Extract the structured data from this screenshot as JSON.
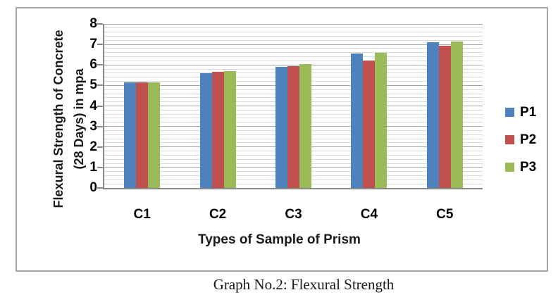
{
  "figure": {
    "caption": "Graph No.2: Flexural Strength"
  },
  "chart_data": {
    "type": "bar",
    "categories": [
      "C1",
      "C2",
      "C3",
      "C4",
      "C5"
    ],
    "series": [
      {
        "name": "P1",
        "color": "#4F81BD",
        "values": [
          5.15,
          5.6,
          5.9,
          6.55,
          7.1
        ]
      },
      {
        "name": "P2",
        "color": "#C0504D",
        "values": [
          5.15,
          5.65,
          5.95,
          6.2,
          6.95
        ]
      },
      {
        "name": "P3",
        "color": "#9BBB59",
        "values": [
          5.15,
          5.7,
          6.05,
          6.6,
          7.15
        ]
      }
    ],
    "title": "",
    "xlabel": "Types of Sample of Prism",
    "ylabel": "Flexural Strength of Concrete\n(28 Days) in mpa",
    "ylim": [
      0,
      8
    ],
    "yticks": [
      0,
      1,
      2,
      3,
      4,
      5,
      6,
      7,
      8
    ],
    "minor_grid_step": 0.2,
    "grid": "horizontal major+minor",
    "legend_position": "right"
  }
}
